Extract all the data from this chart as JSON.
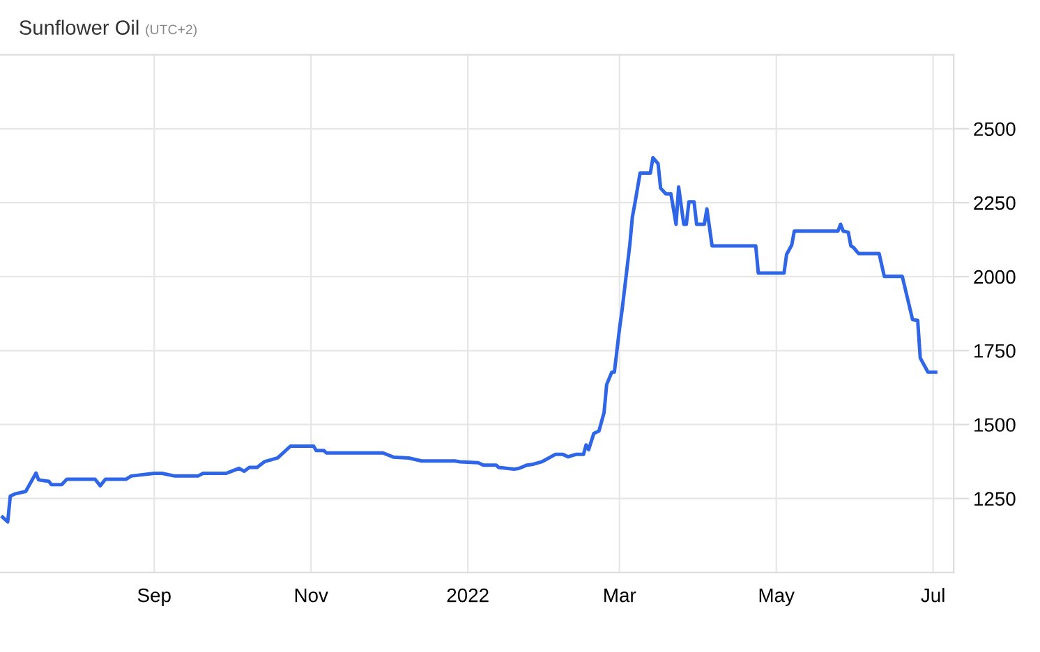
{
  "chart_data": {
    "type": "line",
    "title": "Sunflower Oil",
    "subtitle": "(UTC+2)",
    "x": [
      "2021-07-04",
      "2021-07-06",
      "2021-07-07",
      "2021-07-09",
      "2021-07-13",
      "2021-07-17",
      "2021-07-18",
      "2021-07-22",
      "2021-07-23",
      "2021-07-27",
      "2021-07-29",
      "2021-08-09",
      "2021-08-11",
      "2021-08-13",
      "2021-08-21",
      "2021-08-23",
      "2021-09-01",
      "2021-09-04",
      "2021-09-09",
      "2021-09-18",
      "2021-09-20",
      "2021-09-29",
      "2021-10-01",
      "2021-10-04",
      "2021-10-06",
      "2021-10-08",
      "2021-10-11",
      "2021-10-14",
      "2021-10-19",
      "2021-10-24",
      "2021-11-02",
      "2021-11-03",
      "2021-11-06",
      "2021-11-07",
      "2021-11-29",
      "2021-12-03",
      "2021-12-09",
      "2021-12-14",
      "2021-12-27",
      "2021-12-29",
      "2022-01-05",
      "2022-01-07",
      "2022-01-12",
      "2022-01-13",
      "2022-01-19",
      "2022-01-21",
      "2022-01-24",
      "2022-01-26",
      "2022-01-30",
      "2022-02-04",
      "2022-02-07",
      "2022-02-09",
      "2022-02-12",
      "2022-02-15",
      "2022-02-16",
      "2022-02-17",
      "2022-02-19",
      "2022-02-21",
      "2022-02-23",
      "2022-02-24",
      "2022-02-26",
      "2022-02-27",
      "2022-03-01",
      "2022-03-02",
      "2022-03-05",
      "2022-03-06",
      "2022-03-07",
      "2022-03-09",
      "2022-03-13",
      "2022-03-14",
      "2022-03-16",
      "2022-03-17",
      "2022-03-19",
      "2022-03-21",
      "2022-03-23",
      "2022-03-24",
      "2022-03-26",
      "2022-03-27",
      "2022-03-28",
      "2022-03-30",
      "2022-03-31",
      "2022-04-03",
      "2022-04-04",
      "2022-04-06",
      "2022-04-23",
      "2022-04-24",
      "2022-05-04",
      "2022-05-05",
      "2022-05-07",
      "2022-05-08",
      "2022-05-25",
      "2022-05-26",
      "2022-05-27",
      "2022-05-29",
      "2022-05-30",
      "2022-05-31",
      "2022-06-02",
      "2022-06-10",
      "2022-06-12",
      "2022-06-19",
      "2022-06-23",
      "2022-06-25",
      "2022-06-26",
      "2022-06-29",
      "2022-07-02"
    ],
    "series": [
      {
        "color": "#2f66e8",
        "values": [
          1187,
          1171,
          1258,
          1266,
          1274,
          1336,
          1313,
          1308,
          1297,
          1297,
          1315,
          1315,
          1293,
          1315,
          1315,
          1326,
          1335,
          1335,
          1326,
          1326,
          1335,
          1335,
          1342,
          1352,
          1342,
          1355,
          1355,
          1375,
          1387,
          1427,
          1427,
          1412,
          1412,
          1404,
          1404,
          1390,
          1387,
          1377,
          1377,
          1374,
          1371,
          1363,
          1363,
          1355,
          1349,
          1352,
          1363,
          1365,
          1375,
          1399,
          1399,
          1391,
          1399,
          1399,
          1431,
          1415,
          1470,
          1478,
          1541,
          1635,
          1677,
          1677,
          1824,
          1887,
          2107,
          2201,
          2248,
          2350,
          2350,
          2402,
          2382,
          2299,
          2280,
          2280,
          2177,
          2303,
          2177,
          2177,
          2253,
          2253,
          2177,
          2177,
          2229,
          2104,
          2104,
          2012,
          2012,
          2075,
          2107,
          2154,
          2154,
          2177,
          2154,
          2150,
          2104,
          2099,
          2078,
          2078,
          2001,
          2001,
          1855,
          1852,
          1725,
          1677,
          1677
        ]
      }
    ],
    "xlim": [
      "2021-07-03",
      "2022-07-09"
    ],
    "ylim": [
      1000,
      2750
    ],
    "xticks": [
      {
        "value": "2021-09-01",
        "label": "Sep"
      },
      {
        "value": "2021-11-01",
        "label": "Nov"
      },
      {
        "value": "2022-01-01",
        "label": "2022"
      },
      {
        "value": "2022-03-01",
        "label": "Mar"
      },
      {
        "value": "2022-05-01",
        "label": "May"
      },
      {
        "value": "2022-07-01",
        "label": "Jul"
      }
    ],
    "yticks": [
      1250,
      1500,
      1750,
      2000,
      2250,
      2500
    ],
    "grid": true,
    "marker": "none",
    "line_style": "solid"
  }
}
